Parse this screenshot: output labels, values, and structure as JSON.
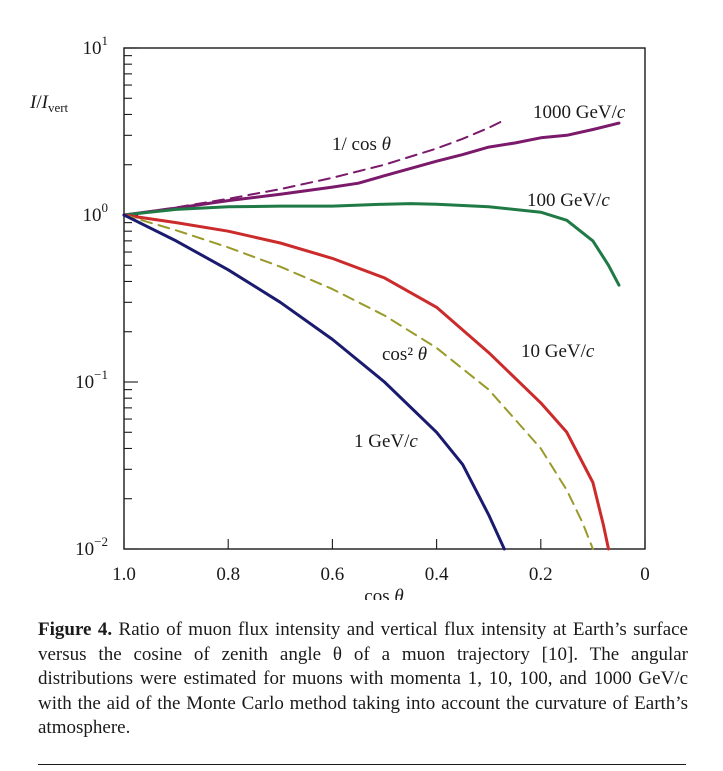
{
  "chart_data": {
    "type": "line",
    "title": "",
    "xlabel": "cos θ",
    "ylabel": "I/I_vert",
    "x_range": [
      1.0,
      0.0
    ],
    "y_range": [
      0.01,
      10
    ],
    "y_scale": "log",
    "x_ticks": [
      "1.0",
      "0.8",
      "0.6",
      "0.4",
      "0.2",
      "0"
    ],
    "y_ticks": [
      {
        "base": "10",
        "exp": "1",
        "value": 10
      },
      {
        "base": "10",
        "exp": "0",
        "value": 1
      },
      {
        "base": "10",
        "exp": "−1",
        "value": 0.1
      },
      {
        "base": "10",
        "exp": "−2",
        "value": 0.01
      }
    ],
    "grid": false,
    "series": [
      {
        "name": "1000 GeV/c",
        "color": "#7b1a6b",
        "dash": false,
        "x": [
          1.0,
          0.9,
          0.8,
          0.7,
          0.6,
          0.55,
          0.5,
          0.45,
          0.4,
          0.35,
          0.3,
          0.25,
          0.2,
          0.15,
          0.1,
          0.05
        ],
        "y": [
          1.0,
          1.1,
          1.22,
          1.33,
          1.47,
          1.55,
          1.72,
          1.9,
          2.1,
          2.3,
          2.55,
          2.7,
          2.9,
          3.0,
          3.25,
          3.55
        ]
      },
      {
        "name": "1/cos θ",
        "color": "#7b1a6b",
        "dash": true,
        "x": [
          1.0,
          0.9,
          0.8,
          0.7,
          0.6,
          0.5,
          0.4,
          0.35,
          0.3,
          0.27
        ],
        "y": [
          1.0,
          1.11,
          1.25,
          1.43,
          1.67,
          2.0,
          2.5,
          2.86,
          3.33,
          3.7
        ]
      },
      {
        "name": "100 GeV/c",
        "color": "#1f7a45",
        "dash": false,
        "x": [
          1.0,
          0.9,
          0.8,
          0.7,
          0.6,
          0.5,
          0.45,
          0.4,
          0.3,
          0.2,
          0.15,
          0.1,
          0.07,
          0.05
        ],
        "y": [
          1.0,
          1.08,
          1.12,
          1.13,
          1.13,
          1.16,
          1.17,
          1.16,
          1.12,
          1.04,
          0.93,
          0.7,
          0.5,
          0.38
        ]
      },
      {
        "name": "10 GeV/c",
        "color": "#cc2b2b",
        "dash": false,
        "x": [
          1.0,
          0.9,
          0.8,
          0.7,
          0.6,
          0.5,
          0.4,
          0.3,
          0.2,
          0.15,
          0.1,
          0.08,
          0.07
        ],
        "y": [
          1.0,
          0.9,
          0.8,
          0.68,
          0.55,
          0.42,
          0.28,
          0.15,
          0.075,
          0.05,
          0.025,
          0.014,
          0.01
        ]
      },
      {
        "name": "cos² θ",
        "color": "#9a9a2a",
        "dash": true,
        "x": [
          1.0,
          0.9,
          0.8,
          0.7,
          0.6,
          0.5,
          0.4,
          0.3,
          0.2,
          0.15,
          0.12,
          0.1
        ],
        "y": [
          1.0,
          0.81,
          0.64,
          0.49,
          0.36,
          0.25,
          0.16,
          0.09,
          0.04,
          0.0225,
          0.0144,
          0.01
        ]
      },
      {
        "name": "1 GeV/c",
        "color": "#1a1a6e",
        "dash": false,
        "x": [
          1.0,
          0.9,
          0.8,
          0.7,
          0.6,
          0.5,
          0.4,
          0.35,
          0.3,
          0.27
        ],
        "y": [
          1.0,
          0.7,
          0.47,
          0.3,
          0.18,
          0.1,
          0.05,
          0.032,
          0.016,
          0.01
        ]
      }
    ],
    "annotations": [
      {
        "text": "1000 GeV/",
        "italic": "c",
        "series": "1000 GeV/c"
      },
      {
        "text": "1/ cos ",
        "italic": "θ",
        "series": "1/cos θ"
      },
      {
        "text": "100 GeV/",
        "italic": "c",
        "series": "100 GeV/c"
      },
      {
        "text": "10 GeV/",
        "italic": "c",
        "series": "10 GeV/c"
      },
      {
        "text": "cos² ",
        "italic": "θ",
        "series": "cos² θ"
      },
      {
        "text": "1 GeV/",
        "italic": "c",
        "series": "1 GeV/c"
      }
    ]
  },
  "axes": {
    "xlabel_text": "cos ",
    "xlabel_italic": "θ",
    "ylabel_main": "I",
    "ylabel_sep": "/",
    "ylabel_denom": "I",
    "ylabel_sub": "vert"
  },
  "caption": {
    "label": "Figure 4.",
    "text": " Ratio of muon flux intensity and vertical flux intensity at Earth’s surface versus the cosine of zenith angle θ of a muon trajectory [10]. The angular distributions were estimated for muons with momenta 1, 10, 100, and 1000 GeV/c with the aid of the Monte Carlo method taking into account the curvature of Earth’s atmosphere."
  }
}
